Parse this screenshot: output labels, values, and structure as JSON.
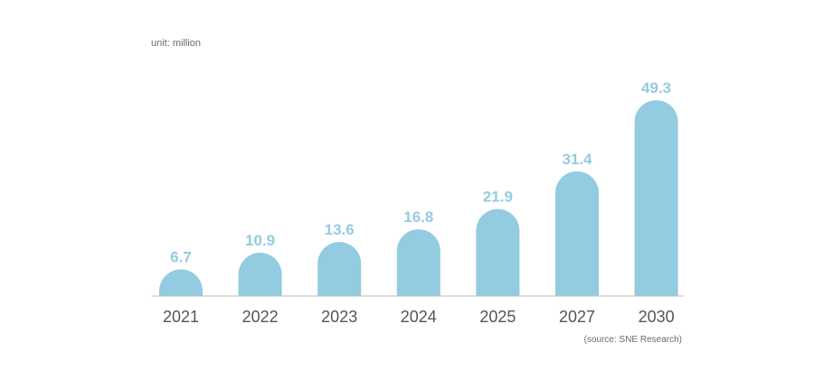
{
  "chart_data": {
    "type": "bar",
    "categories": [
      "2021",
      "2022",
      "2023",
      "2024",
      "2025",
      "2027",
      "2030"
    ],
    "values": [
      6.7,
      10.9,
      13.6,
      16.8,
      21.9,
      31.4,
      49.3
    ],
    "value_labels": [
      "6.7",
      "10.9",
      "13.6",
      "16.8",
      "21.9",
      "31.4",
      "49.3"
    ],
    "unit_label": "unit: million",
    "source": "(source: SNE Research)",
    "title": "",
    "xlabel": "",
    "ylabel": "",
    "ylim": [
      0,
      50
    ],
    "grid": false,
    "legend": "none",
    "bar_color": "#93cbe0",
    "value_label_color": "#93cbe0",
    "axis_color": "#bdbdbd",
    "tick_label_color": "#555555"
  }
}
